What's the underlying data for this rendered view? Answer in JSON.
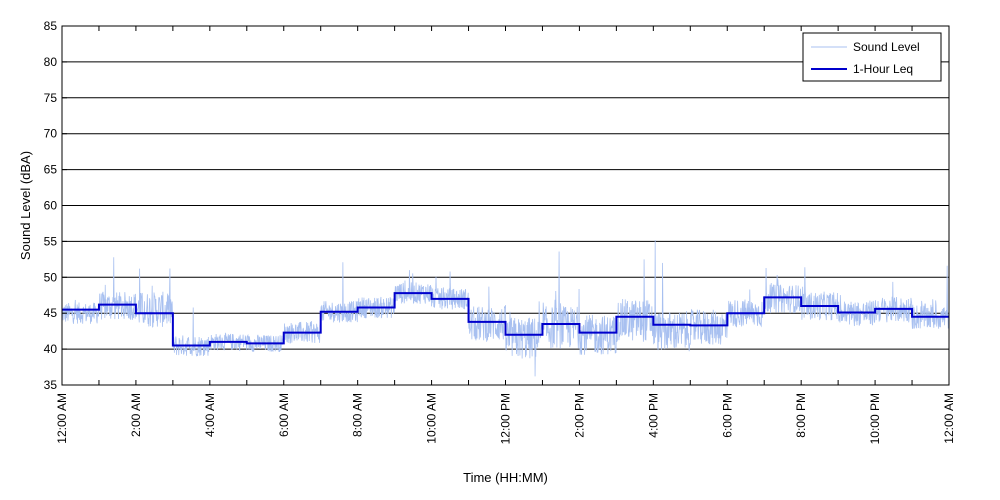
{
  "chart_data": {
    "type": "line",
    "xlabel": "Time (HH:MM)",
    "ylabel": "Sound Level (dBA)",
    "ylim": [
      35,
      85
    ],
    "yticks": [
      35,
      40,
      45,
      50,
      55,
      60,
      65,
      70,
      75,
      80,
      85
    ],
    "xlim_hours": [
      0,
      24
    ],
    "xtick_labels": [
      "12:00 AM",
      "2:00 AM",
      "4:00 AM",
      "6:00 AM",
      "8:00 AM",
      "10:00 AM",
      "12:00 PM",
      "2:00 PM",
      "4:00 PM",
      "6:00 PM",
      "8:00 PM",
      "10:00 PM",
      "12:00 AM"
    ],
    "grid": "horizontal",
    "legend_position": "top-right",
    "series": [
      {
        "name": "Sound Level",
        "color": "#a8c0f0",
        "style": "thin noisy line",
        "hourly_mean": [
          45.0,
          46.0,
          45.5,
          40.5,
          41.0,
          40.8,
          42.3,
          45.2,
          45.8,
          47.8,
          47.0,
          43.5,
          41.5,
          43.0,
          42.0,
          44.0,
          42.5,
          43.0,
          45.0,
          47.0,
          46.0,
          45.0,
          45.5,
          44.5
        ],
        "hourly_spread": [
          1.5,
          2.0,
          2.5,
          1.5,
          1.2,
          1.2,
          1.5,
          1.5,
          1.5,
          1.5,
          1.5,
          2.5,
          3.0,
          3.0,
          2.8,
          3.0,
          2.8,
          2.5,
          2.0,
          2.0,
          2.0,
          1.8,
          1.8,
          1.8
        ],
        "spikes": [
          {
            "hour": 1.4,
            "y": 52.8
          },
          {
            "hour": 2.1,
            "y": 51.2
          },
          {
            "hour": 3.55,
            "y": 45.8
          },
          {
            "hour": 7.6,
            "y": 52.1
          },
          {
            "hour": 9.4,
            "y": 51.0
          },
          {
            "hour": 10.5,
            "y": 50.8
          },
          {
            "hour": 13.45,
            "y": 53.6
          },
          {
            "hour": 15.75,
            "y": 52.5
          },
          {
            "hour": 16.05,
            "y": 55.2
          },
          {
            "hour": 16.25,
            "y": 52.0
          },
          {
            "hour": 19.05,
            "y": 51.3
          },
          {
            "hour": 20.1,
            "y": 51.4
          },
          {
            "hour": 23.95,
            "y": 51.6
          },
          {
            "hour": 12.8,
            "y": 36.2
          }
        ]
      },
      {
        "name": "1-Hour Leq",
        "color": "#0000cc",
        "style": "step",
        "hours": [
          0,
          1,
          2,
          3,
          4,
          5,
          6,
          7,
          8,
          9,
          10,
          11,
          12,
          13,
          14,
          15,
          16,
          17,
          18,
          19,
          20,
          21,
          22,
          23
        ],
        "values": [
          45.5,
          46.2,
          45.0,
          40.5,
          41.0,
          40.8,
          42.3,
          45.2,
          45.8,
          47.8,
          47.0,
          43.8,
          42.0,
          43.5,
          42.3,
          44.5,
          43.4,
          43.3,
          45.0,
          47.2,
          46.0,
          45.1,
          45.6,
          44.5
        ]
      }
    ]
  }
}
